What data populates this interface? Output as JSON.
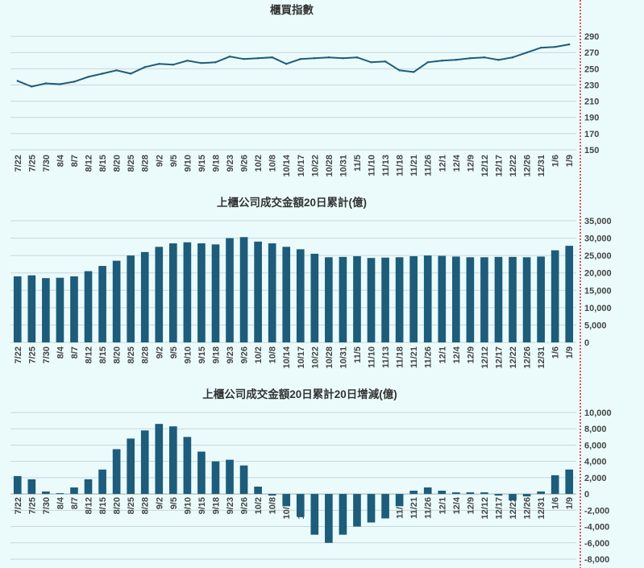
{
  "colors": {
    "series": "#1d5c7a",
    "background": "#ebfbfc",
    "grid": "#c9d6d8",
    "marker_line": "#d92020"
  },
  "x_dates": [
    "7/22",
    "7/25",
    "7/30",
    "8/4",
    "8/7",
    "8/12",
    "8/15",
    "8/20",
    "8/25",
    "8/28",
    "9/2",
    "9/5",
    "9/10",
    "9/15",
    "9/18",
    "9/23",
    "9/26",
    "10/2",
    "10/8",
    "10/14",
    "10/17",
    "10/22",
    "10/28",
    "10/31",
    "11/5",
    "11/10",
    "11/13",
    "11/18",
    "11/21",
    "11/26",
    "12/1",
    "12/4",
    "12/9",
    "12/12",
    "12/17",
    "12/22",
    "12/26",
    "12/31",
    "1/6",
    "1/9"
  ],
  "chart_data": [
    {
      "type": "line",
      "title": "櫃買指數",
      "ylim": [
        150,
        300
      ],
      "yticks": [
        150,
        170,
        190,
        210,
        230,
        250,
        270,
        290
      ],
      "grid": true,
      "x": [
        "7/22",
        "7/25",
        "7/30",
        "8/4",
        "8/7",
        "8/12",
        "8/15",
        "8/20",
        "8/25",
        "8/28",
        "9/2",
        "9/5",
        "9/10",
        "9/15",
        "9/18",
        "9/23",
        "9/26",
        "10/2",
        "10/8",
        "10/14",
        "10/17",
        "10/22",
        "10/28",
        "10/31",
        "11/5",
        "11/10",
        "11/13",
        "11/18",
        "11/21",
        "11/26",
        "12/1",
        "12/4",
        "12/9",
        "12/12",
        "12/17",
        "12/22",
        "12/26",
        "12/31",
        "1/6",
        "1/9"
      ],
      "values": [
        235,
        228,
        232,
        231,
        234,
        240,
        244,
        248,
        244,
        252,
        256,
        255,
        260,
        257,
        258,
        265,
        262,
        263,
        264,
        256,
        262,
        263,
        264,
        263,
        264,
        258,
        259,
        248,
        246,
        258,
        260,
        261,
        263,
        264,
        261,
        264,
        270,
        276,
        277,
        280
      ]
    },
    {
      "type": "bar",
      "title": "上櫃公司成交金額20日累計(億)",
      "ylim": [
        0,
        35000
      ],
      "yticks": [
        0,
        5000,
        10000,
        15000,
        20000,
        25000,
        30000,
        35000
      ],
      "grid": true,
      "x": [
        "7/22",
        "7/25",
        "7/30",
        "8/4",
        "8/7",
        "8/12",
        "8/15",
        "8/20",
        "8/25",
        "8/28",
        "9/2",
        "9/5",
        "9/10",
        "9/15",
        "9/18",
        "9/23",
        "9/26",
        "10/2",
        "10/8",
        "10/14",
        "10/17",
        "10/22",
        "10/28",
        "10/31",
        "11/5",
        "11/10",
        "11/13",
        "11/18",
        "11/21",
        "11/26",
        "12/1",
        "12/4",
        "12/9",
        "12/12",
        "12/17",
        "12/22",
        "12/26",
        "12/31",
        "1/6",
        "1/9"
      ],
      "values": [
        19000,
        19300,
        18500,
        18600,
        19000,
        20500,
        22000,
        23500,
        25000,
        26000,
        27500,
        28500,
        28800,
        28500,
        28200,
        30000,
        30300,
        29000,
        28500,
        27500,
        26800,
        25500,
        24500,
        24600,
        24800,
        24300,
        24400,
        24500,
        24800,
        25000,
        24900,
        24700,
        24500,
        24500,
        24600,
        24600,
        24500,
        24700,
        26500,
        27800
      ]
    },
    {
      "type": "bar",
      "title": "上櫃公司成交金額20日累計20日增減(億)",
      "ylim": [
        -8000,
        10000
      ],
      "yticks": [
        -8000,
        -6000,
        -4000,
        -2000,
        0,
        2000,
        4000,
        6000,
        8000,
        10000
      ],
      "grid": true,
      "x": [
        "7/22",
        "7/25",
        "7/30",
        "8/4",
        "8/7",
        "8/12",
        "8/15",
        "8/20",
        "8/25",
        "8/28",
        "9/2",
        "9/5",
        "9/10",
        "9/15",
        "9/18",
        "9/23",
        "9/26",
        "10/2",
        "10/8",
        "10/14",
        "10/17",
        "10/22",
        "10/28",
        "10/31",
        "11/5",
        "11/10",
        "11/13",
        "11/18",
        "11/21",
        "11/26",
        "12/1",
        "12/4",
        "12/9",
        "12/12",
        "12/17",
        "12/22",
        "12/26",
        "12/31",
        "1/6",
        "1/9"
      ],
      "values": [
        2200,
        1800,
        300,
        100,
        800,
        1800,
        3000,
        5500,
        6800,
        7800,
        8600,
        8300,
        7000,
        5200,
        4000,
        4200,
        3500,
        900,
        -200,
        -1500,
        -2800,
        -5000,
        -6000,
        -5000,
        -4000,
        -3500,
        -3000,
        -1500,
        400,
        800,
        400,
        200,
        200,
        200,
        -200,
        -800,
        -300,
        300,
        2300,
        3000
      ]
    }
  ]
}
